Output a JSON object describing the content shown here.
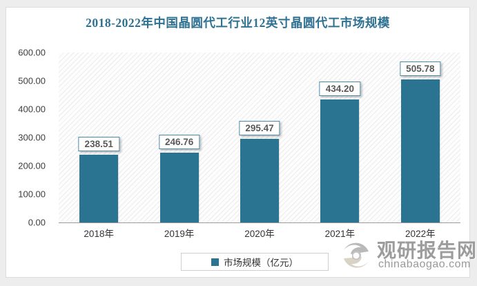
{
  "title": "2018-2022年中国晶圆代工行业12英寸晶圆代工市场规模",
  "chart_data": {
    "type": "bar",
    "title": "2018-2022年中国晶圆代工行业12英寸晶圆代工市场规模",
    "categories": [
      "2018年",
      "2019年",
      "2020年",
      "2021年",
      "2022年"
    ],
    "values": [
      238.51,
      246.76,
      295.47,
      434.2,
      505.78
    ],
    "value_labels": [
      "238.51",
      "246.76",
      "295.47",
      "434.20",
      "505.78"
    ],
    "ylim": [
      0,
      600
    ],
    "ytick_step": 100,
    "ytick_labels": [
      "0.00",
      "100.00",
      "200.00",
      "300.00",
      "400.00",
      "500.00",
      "600.00"
    ],
    "xlabel": "",
    "ylabel": "",
    "grid": false,
    "legend_position": "bottom",
    "legend": [
      "市场规模（亿元）"
    ]
  },
  "legend": {
    "label": "市场规模（亿元）"
  },
  "watermark": {
    "name": "观研报告网",
    "domain": "chinabaogao.com"
  },
  "colors": {
    "bar": "#2a7492",
    "title": "#2e7192",
    "label_box_border": "#4a8aa8",
    "axis_line": "#9a9a9a",
    "watermark_text": "#9c9c9c"
  }
}
